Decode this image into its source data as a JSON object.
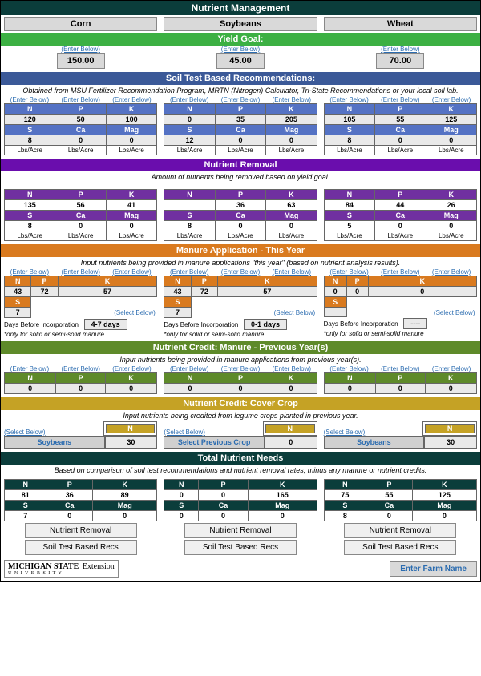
{
  "title": "Nutrient Management",
  "tabs": [
    "Corn",
    "Soybeans",
    "Wheat"
  ],
  "enter_below": "(Enter Below)",
  "select_below": "(Select Below)",
  "sections": {
    "yield": "Yield Goal:",
    "soil": "Soil Test Based Recommendations:",
    "soil_sub": "Obtained from MSU Fertilizer Recommendation Program, MRTN (Nitrogen) Calculator, Tri-State Recommendations or your local soil lab.",
    "removal": "Nutrient Removal",
    "removal_sub": "Amount of nutrients being removed based on yield goal.",
    "manure": "Manure  Application - This Year",
    "manure_sub": "Input nutrients being provided in manure applications \"this year\" (based on nutrient analysis results).",
    "credit_manure": "Nutrient Credit: Manure - Previous Year(s)",
    "credit_manure_sub": "Input nutrients being provided in manure applications from previous year(s).",
    "credit_cover": "Nutrient Credit: Cover Crop",
    "credit_cover_sub": "Input nutrients being credited from legume crops planted in previous year.",
    "total": "Total Nutrient Needs",
    "total_sub": "Based on comparison of soil test recommendations and nutrient removal rates, minus any manure or nutrient credits."
  },
  "labels": {
    "n": "N",
    "p": "P",
    "k": "K",
    "s": "S",
    "ca": "Ca",
    "mg": "Mag",
    "units": "Lbs/Acre",
    "days_before": "Days Before Incorporation",
    "days_note": "*only for solid or semi-solid manure",
    "btn_removal": "Nutrient Removal",
    "btn_soil": "Soil Test Based Recs",
    "farm": "Enter Farm Name",
    "logo1": "MICHIGAN STATE",
    "logo2": "U N I V E R S I T Y",
    "logo3": "Extension"
  },
  "crops": [
    {
      "yield": "150.00",
      "soil": {
        "n": "120",
        "p": "50",
        "k": "100",
        "s": "8",
        "ca": "0",
        "mg": "0"
      },
      "removal": {
        "n": "135",
        "p": "56",
        "k": "41",
        "s": "8",
        "ca": "0",
        "mg": "0"
      },
      "manure": {
        "n": "43",
        "p": "72",
        "k": "57",
        "s": "7"
      },
      "days": "4-7 days",
      "credit": {
        "n": "0",
        "p": "0",
        "k": "0"
      },
      "cover": {
        "crop": "Soybeans",
        "n": "30"
      },
      "total": {
        "n": "81",
        "p": "36",
        "k": "89",
        "s": "7",
        "ca": "0",
        "mg": "0"
      }
    },
    {
      "yield": "45.00",
      "soil": {
        "n": "0",
        "p": "35",
        "k": "205",
        "s": "12",
        "ca": "0",
        "mg": "0"
      },
      "removal": {
        "n": "",
        "p": "36",
        "k": "63",
        "s": "8",
        "ca": "0",
        "mg": "0"
      },
      "manure": {
        "n": "43",
        "p": "72",
        "k": "57",
        "s": "7"
      },
      "days": "0-1 days",
      "credit": {
        "n": "0",
        "p": "0",
        "k": "0"
      },
      "cover": {
        "crop": "Select Previous Crop",
        "n": "0"
      },
      "total": {
        "n": "0",
        "p": "0",
        "k": "165",
        "s": "0",
        "ca": "0",
        "mg": "0"
      }
    },
    {
      "yield": "70.00",
      "soil": {
        "n": "105",
        "p": "55",
        "k": "125",
        "s": "8",
        "ca": "0",
        "mg": "0"
      },
      "removal": {
        "n": "84",
        "p": "44",
        "k": "26",
        "s": "5",
        "ca": "0",
        "mg": "0"
      },
      "manure": {
        "n": "0",
        "p": "0",
        "k": "0",
        "s": ""
      },
      "days": "----",
      "credit": {
        "n": "0",
        "p": "0",
        "k": "0"
      },
      "cover": {
        "crop": "Soybeans",
        "n": "30"
      },
      "total": {
        "n": "75",
        "p": "55",
        "k": "125",
        "s": "8",
        "ca": "0",
        "mg": "0"
      }
    }
  ]
}
